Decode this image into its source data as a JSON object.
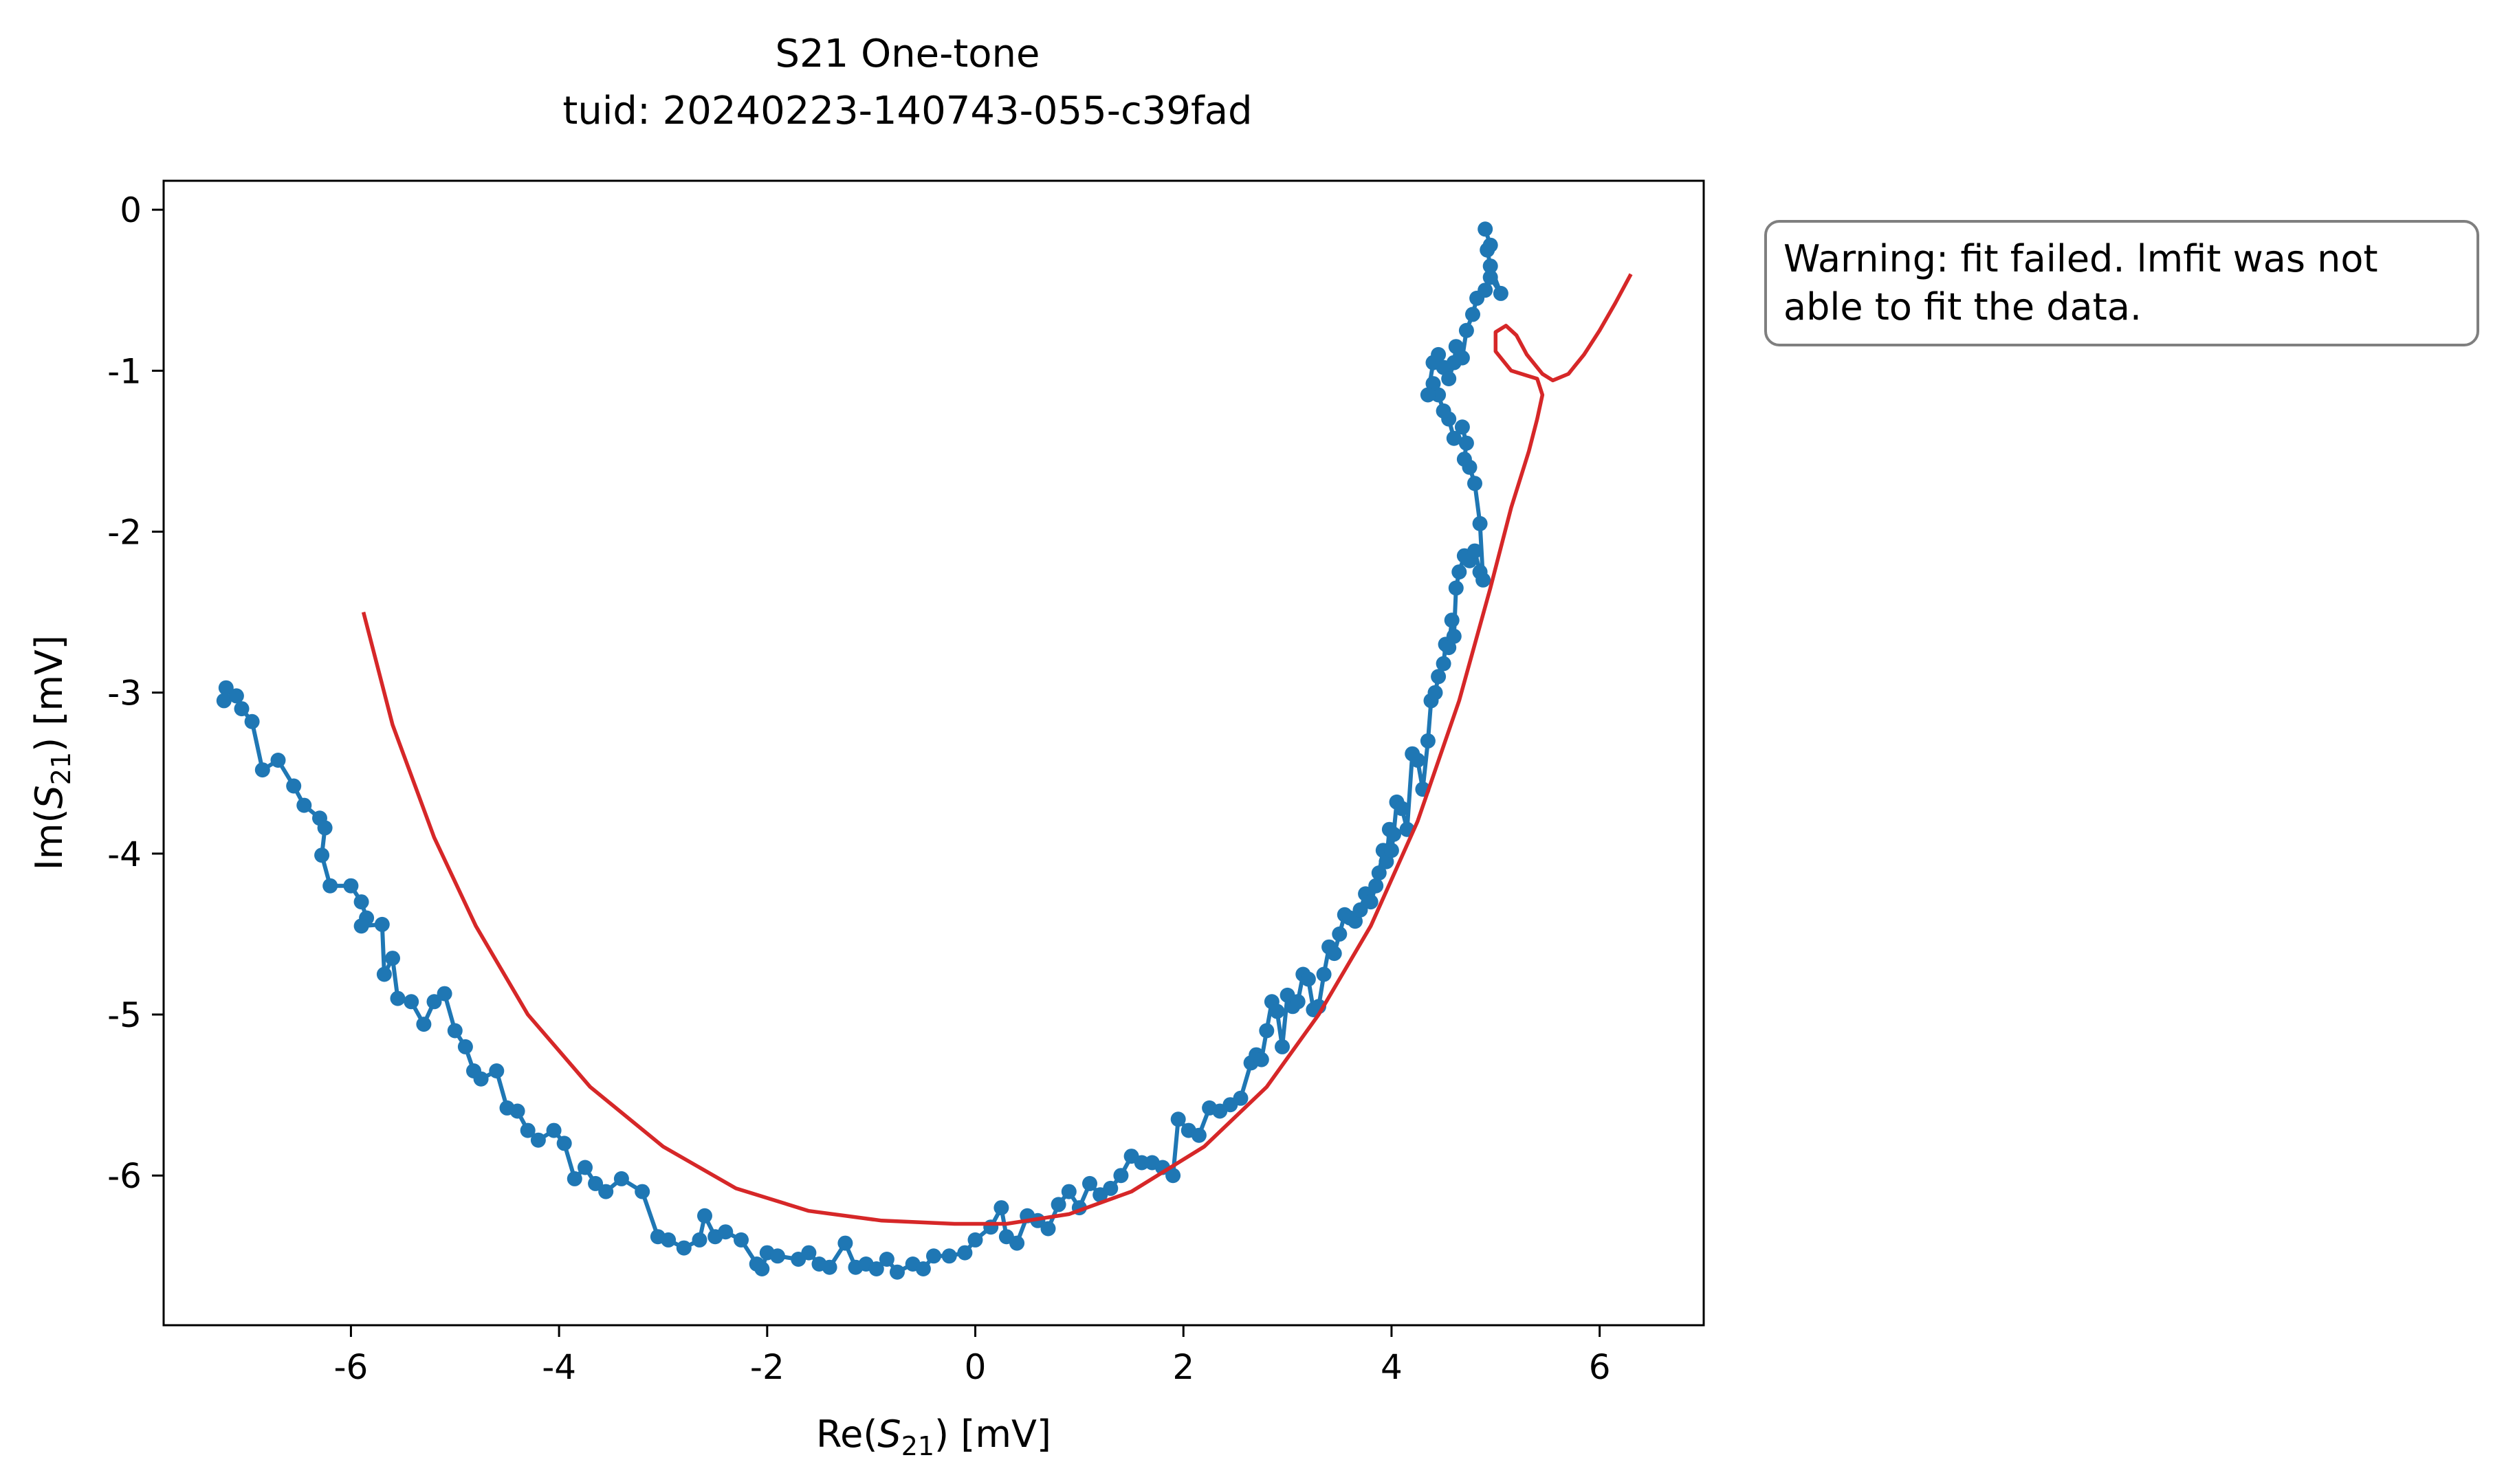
{
  "chart_data": {
    "type": "line",
    "title": "S21 One-tone",
    "subtitle": "tuid: 20240223-140743-055-c39fad",
    "xlabel": {
      "pre": "Re(",
      "sym": "S",
      "sub": "21",
      "post": ") [mV]"
    },
    "ylabel": {
      "pre": "Im(",
      "sym": "S",
      "sub": "21",
      "post": ") [mV]"
    },
    "xlim": [
      -7.8,
      7.0
    ],
    "ylim": [
      -6.93,
      0.18
    ],
    "xticks": [
      -6,
      -4,
      -2,
      0,
      2,
      4,
      6
    ],
    "xtick_labels": [
      "-6",
      "-4",
      "-2",
      "0",
      "2",
      "4",
      "6"
    ],
    "yticks": [
      0,
      -1,
      -2,
      -3,
      -4,
      -5,
      -6
    ],
    "ytick_labels": [
      "0",
      "-1",
      "-2",
      "-3",
      "-4",
      "-5",
      "-6"
    ],
    "grid": false,
    "annotation": "Warning: fit failed. lmfit was not able to fit the data.",
    "series": [
      {
        "color": "#1f77b4",
        "style": "line+markers",
        "points": [
          [
            -7.2,
            -2.97
          ],
          [
            -7.22,
            -3.05
          ],
          [
            -7.1,
            -3.02
          ],
          [
            -7.05,
            -3.1
          ],
          [
            -6.95,
            -3.18
          ],
          [
            -6.85,
            -3.48
          ],
          [
            -6.7,
            -3.42
          ],
          [
            -6.55,
            -3.58
          ],
          [
            -6.45,
            -3.7
          ],
          [
            -6.3,
            -3.78
          ],
          [
            -6.25,
            -3.84
          ],
          [
            -6.28,
            -4.01
          ],
          [
            -6.2,
            -4.2
          ],
          [
            -6.0,
            -4.2
          ],
          [
            -5.9,
            -4.3
          ],
          [
            -5.85,
            -4.4
          ],
          [
            -5.9,
            -4.45
          ],
          [
            -5.7,
            -4.44
          ],
          [
            -5.68,
            -4.75
          ],
          [
            -5.6,
            -4.65
          ],
          [
            -5.55,
            -4.9
          ],
          [
            -5.42,
            -4.92
          ],
          [
            -5.3,
            -5.06
          ],
          [
            -5.2,
            -4.92
          ],
          [
            -5.1,
            -4.87
          ],
          [
            -5.0,
            -5.1
          ],
          [
            -4.9,
            -5.2
          ],
          [
            -4.82,
            -5.35
          ],
          [
            -4.75,
            -5.4
          ],
          [
            -4.6,
            -5.35
          ],
          [
            -4.5,
            -5.58
          ],
          [
            -4.4,
            -5.6
          ],
          [
            -4.3,
            -5.72
          ],
          [
            -4.2,
            -5.78
          ],
          [
            -4.05,
            -5.72
          ],
          [
            -3.95,
            -5.8
          ],
          [
            -3.85,
            -6.02
          ],
          [
            -3.75,
            -5.95
          ],
          [
            -3.65,
            -6.05
          ],
          [
            -3.55,
            -6.1
          ],
          [
            -3.4,
            -6.02
          ],
          [
            -3.2,
            -6.1
          ],
          [
            -3.05,
            -6.38
          ],
          [
            -2.95,
            -6.4
          ],
          [
            -2.8,
            -6.45
          ],
          [
            -2.65,
            -6.4
          ],
          [
            -2.6,
            -6.25
          ],
          [
            -2.5,
            -6.38
          ],
          [
            -2.4,
            -6.35
          ],
          [
            -2.25,
            -6.4
          ],
          [
            -2.1,
            -6.55
          ],
          [
            -2.05,
            -6.58
          ],
          [
            -2.0,
            -6.48
          ],
          [
            -1.9,
            -6.5
          ],
          [
            -1.7,
            -6.52
          ],
          [
            -1.6,
            -6.48
          ],
          [
            -1.5,
            -6.55
          ],
          [
            -1.4,
            -6.57
          ],
          [
            -1.25,
            -6.42
          ],
          [
            -1.15,
            -6.57
          ],
          [
            -1.05,
            -6.55
          ],
          [
            -0.95,
            -6.58
          ],
          [
            -0.85,
            -6.52
          ],
          [
            -0.75,
            -6.6
          ],
          [
            -0.6,
            -6.55
          ],
          [
            -0.5,
            -6.58
          ],
          [
            -0.4,
            -6.5
          ],
          [
            -0.25,
            -6.5
          ],
          [
            -0.1,
            -6.48
          ],
          [
            0.0,
            -6.4
          ],
          [
            0.15,
            -6.32
          ],
          [
            0.25,
            -6.2
          ],
          [
            0.3,
            -6.38
          ],
          [
            0.4,
            -6.42
          ],
          [
            0.5,
            -6.25
          ],
          [
            0.6,
            -6.28
          ],
          [
            0.7,
            -6.33
          ],
          [
            0.8,
            -6.18
          ],
          [
            0.9,
            -6.1
          ],
          [
            1.0,
            -6.2
          ],
          [
            1.1,
            -6.05
          ],
          [
            1.2,
            -6.12
          ],
          [
            1.3,
            -6.08
          ],
          [
            1.4,
            -6.0
          ],
          [
            1.5,
            -5.88
          ],
          [
            1.6,
            -5.92
          ],
          [
            1.7,
            -5.92
          ],
          [
            1.8,
            -5.95
          ],
          [
            1.9,
            -6.0
          ],
          [
            1.95,
            -5.65
          ],
          [
            2.05,
            -5.72
          ],
          [
            2.15,
            -5.75
          ],
          [
            2.25,
            -5.58
          ],
          [
            2.35,
            -5.6
          ],
          [
            2.45,
            -5.56
          ],
          [
            2.55,
            -5.52
          ],
          [
            2.65,
            -5.3
          ],
          [
            2.7,
            -5.25
          ],
          [
            2.75,
            -5.28
          ],
          [
            2.8,
            -5.1
          ],
          [
            2.85,
            -4.92
          ],
          [
            2.9,
            -4.98
          ],
          [
            2.95,
            -5.2
          ],
          [
            3.0,
            -4.88
          ],
          [
            3.05,
            -4.95
          ],
          [
            3.1,
            -4.92
          ],
          [
            3.15,
            -4.75
          ],
          [
            3.2,
            -4.78
          ],
          [
            3.25,
            -4.97
          ],
          [
            3.3,
            -4.95
          ],
          [
            3.35,
            -4.75
          ],
          [
            3.4,
            -4.58
          ],
          [
            3.45,
            -4.62
          ],
          [
            3.5,
            -4.5
          ],
          [
            3.55,
            -4.38
          ],
          [
            3.6,
            -4.4
          ],
          [
            3.65,
            -4.42
          ],
          [
            3.7,
            -4.35
          ],
          [
            3.75,
            -4.25
          ],
          [
            3.8,
            -4.3
          ],
          [
            3.85,
            -4.2
          ],
          [
            3.88,
            -4.12
          ],
          [
            3.92,
            -3.98
          ],
          [
            3.95,
            -4.05
          ],
          [
            3.98,
            -3.85
          ],
          [
            4.0,
            -3.98
          ],
          [
            4.02,
            -3.88
          ],
          [
            4.05,
            -3.68
          ],
          [
            4.1,
            -3.72
          ],
          [
            4.15,
            -3.85
          ],
          [
            4.2,
            -3.38
          ],
          [
            4.25,
            -3.42
          ],
          [
            4.3,
            -3.6
          ],
          [
            4.35,
            -3.3
          ],
          [
            4.38,
            -3.05
          ],
          [
            4.42,
            -3.0
          ],
          [
            4.45,
            -2.9
          ],
          [
            4.5,
            -2.82
          ],
          [
            4.52,
            -2.7
          ],
          [
            4.55,
            -2.72
          ],
          [
            4.58,
            -2.55
          ],
          [
            4.6,
            -2.65
          ],
          [
            4.62,
            -2.35
          ],
          [
            4.65,
            -2.25
          ],
          [
            4.7,
            -2.15
          ],
          [
            4.75,
            -2.18
          ],
          [
            4.8,
            -2.12
          ],
          [
            4.85,
            -2.25
          ],
          [
            4.88,
            -2.3
          ],
          [
            4.85,
            -1.95
          ],
          [
            4.8,
            -1.7
          ],
          [
            4.75,
            -1.6
          ],
          [
            4.7,
            -1.55
          ],
          [
            4.72,
            -1.45
          ],
          [
            4.68,
            -1.35
          ],
          [
            4.6,
            -1.42
          ],
          [
            4.55,
            -1.3
          ],
          [
            4.5,
            -1.25
          ],
          [
            4.45,
            -1.15
          ],
          [
            4.4,
            -1.08
          ],
          [
            4.35,
            -1.15
          ],
          [
            4.4,
            -0.95
          ],
          [
            4.45,
            -0.9
          ],
          [
            4.5,
            -0.98
          ],
          [
            4.55,
            -1.05
          ],
          [
            4.6,
            -0.95
          ],
          [
            4.62,
            -0.85
          ],
          [
            4.68,
            -0.92
          ],
          [
            4.72,
            -0.75
          ],
          [
            4.78,
            -0.65
          ],
          [
            4.82,
            -0.55
          ],
          [
            4.9,
            -0.5
          ],
          [
            4.95,
            -0.42
          ],
          [
            5.05,
            -0.52
          ],
          [
            4.95,
            -0.35
          ],
          [
            4.92,
            -0.25
          ],
          [
            4.95,
            -0.22
          ],
          [
            4.9,
            -0.12
          ]
        ]
      },
      {
        "color": "#d62728",
        "style": "line",
        "points": [
          [
            -5.88,
            -2.5
          ],
          [
            -5.6,
            -3.2
          ],
          [
            -5.2,
            -3.9
          ],
          [
            -4.8,
            -4.45
          ],
          [
            -4.3,
            -5.0
          ],
          [
            -3.7,
            -5.45
          ],
          [
            -3.0,
            -5.82
          ],
          [
            -2.3,
            -6.08
          ],
          [
            -1.6,
            -6.22
          ],
          [
            -0.9,
            -6.28
          ],
          [
            -0.2,
            -6.3
          ],
          [
            0.3,
            -6.3
          ],
          [
            0.9,
            -6.24
          ],
          [
            1.5,
            -6.1
          ],
          [
            2.2,
            -5.82
          ],
          [
            2.8,
            -5.45
          ],
          [
            3.3,
            -5.0
          ],
          [
            3.8,
            -4.45
          ],
          [
            4.25,
            -3.8
          ],
          [
            4.65,
            -3.05
          ],
          [
            4.95,
            -2.35
          ],
          [
            5.15,
            -1.85
          ],
          [
            5.32,
            -1.5
          ],
          [
            5.4,
            -1.3
          ],
          [
            5.45,
            -1.15
          ],
          [
            5.4,
            -1.05
          ],
          [
            5.3,
            -1.03
          ],
          [
            5.15,
            -1.0
          ],
          [
            5.0,
            -0.88
          ],
          [
            5.0,
            -0.76
          ],
          [
            5.1,
            -0.72
          ],
          [
            5.2,
            -0.78
          ],
          [
            5.3,
            -0.9
          ],
          [
            5.45,
            -1.02
          ],
          [
            5.55,
            -1.06
          ],
          [
            5.7,
            -1.02
          ],
          [
            5.85,
            -0.9
          ],
          [
            6.0,
            -0.75
          ],
          [
            6.15,
            -0.58
          ],
          [
            6.3,
            -0.4
          ]
        ]
      }
    ]
  }
}
